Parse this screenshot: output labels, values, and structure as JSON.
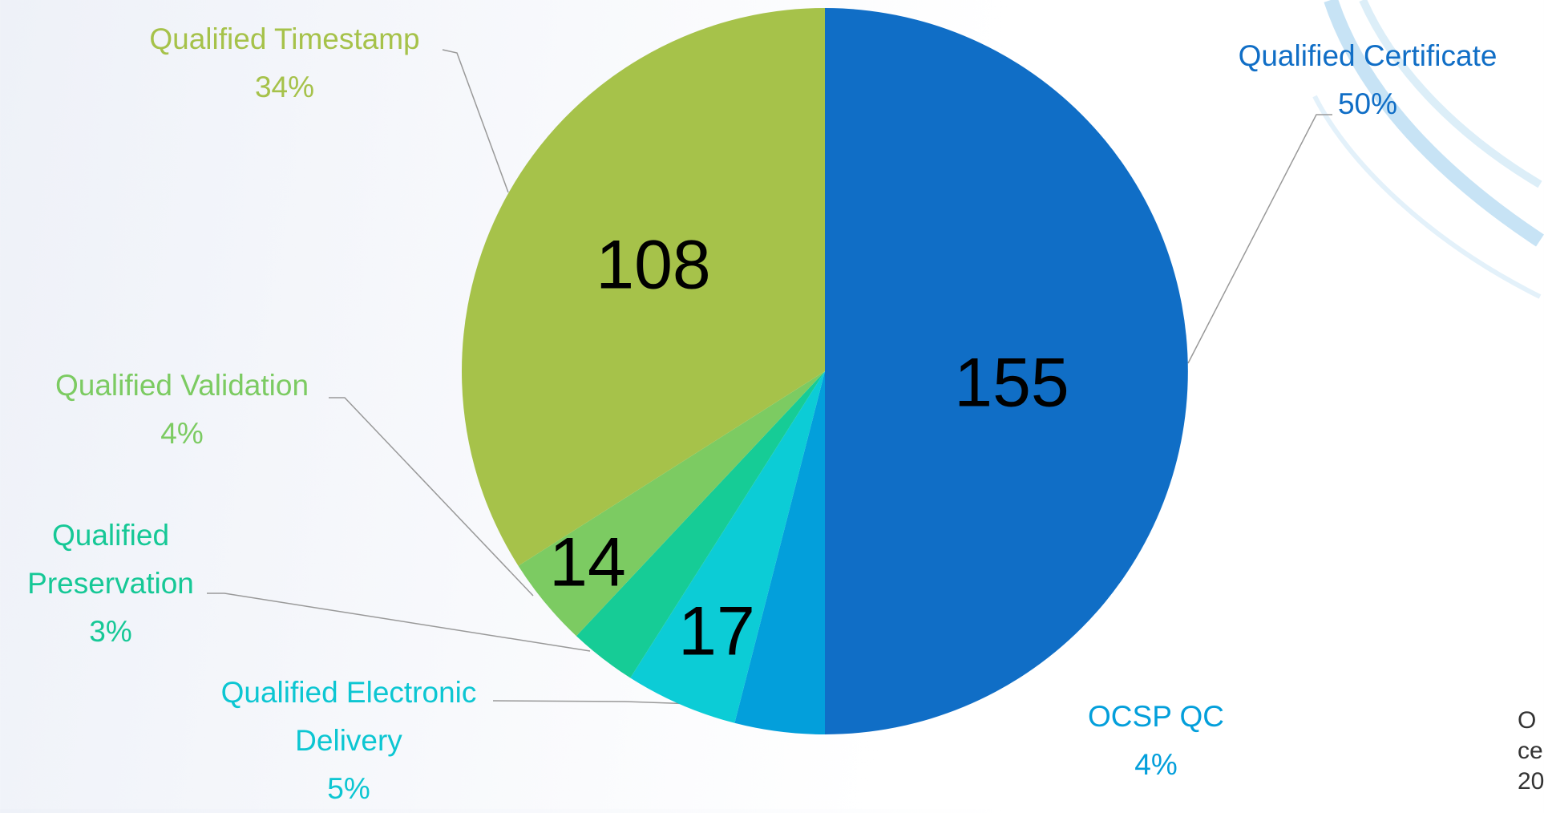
{
  "chart_data": {
    "type": "pie",
    "categories": [
      "Qualified Certificate",
      "OCSP QC",
      "Qualified Electronic Delivery",
      "Qualified Preservation",
      "Qualified Validation",
      "Qualified Timestamp"
    ],
    "values": [
      50,
      4,
      5,
      3,
      4,
      34
    ],
    "value_labels": [
      "50%",
      "4%",
      "5%",
      "3%",
      "4%",
      "34%"
    ],
    "counts": [
      155,
      null,
      17,
      null,
      14,
      108
    ],
    "colors": [
      "#106ec6",
      "#039fdb",
      "#0cccd6",
      "#16cc96",
      "#7ccb62",
      "#a6c24a"
    ],
    "label_colors": [
      "#106ec6",
      "#039fdb",
      "#0cc6d2",
      "#16c896",
      "#7ccb62",
      "#a6c24a"
    ],
    "side_text": [
      "O",
      "ce",
      "20"
    ]
  }
}
